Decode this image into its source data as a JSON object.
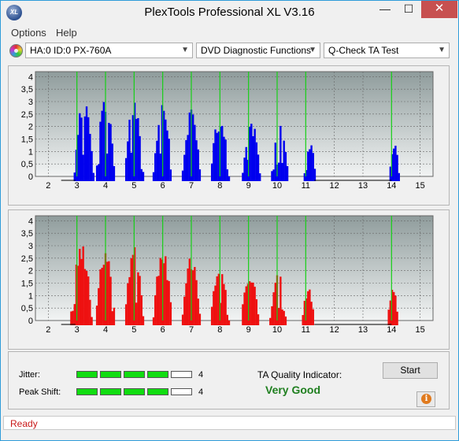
{
  "window": {
    "title": "PlexTools Professional XL V3.16",
    "app_icon_text": "XL",
    "minimize_glyph": "—",
    "maximize_glyph": "☐",
    "close_glyph": "✕"
  },
  "menu": {
    "items": [
      {
        "label": "Options"
      },
      {
        "label": "Help"
      }
    ]
  },
  "toolbar": {
    "drive": "HA:0 ID:0  PX-760A",
    "function": "DVD Diagnostic Functions",
    "test": "Q-Check TA Test",
    "icon": "disc-icon"
  },
  "chart_data": [
    {
      "type": "bar",
      "color": "#0000ee",
      "x_ticks": [
        2,
        3,
        4,
        5,
        6,
        7,
        8,
        9,
        10,
        11,
        12,
        13,
        14,
        15
      ],
      "y_ticks": [
        "4",
        "3,5",
        "3",
        "2,5",
        "2",
        "1,5",
        "1",
        "0,5",
        "0"
      ],
      "xlim": [
        1.55,
        15.45
      ],
      "ylim": [
        0,
        4.2
      ],
      "grid": true,
      "markers": [
        3,
        4,
        5,
        6,
        7,
        8,
        9,
        10,
        11,
        14
      ],
      "peaks": [
        {
          "center": 3.25,
          "half_width": 0.34,
          "height": 3.2
        },
        {
          "center": 4.0,
          "half_width": 0.33,
          "height": 3.15
        },
        {
          "center": 5.0,
          "half_width": 0.33,
          "height": 3.0
        },
        {
          "center": 6.0,
          "half_width": 0.33,
          "height": 2.9
        },
        {
          "center": 7.0,
          "half_width": 0.32,
          "height": 2.75
        },
        {
          "center": 8.0,
          "half_width": 0.32,
          "height": 2.55
        },
        {
          "center": 9.1,
          "half_width": 0.31,
          "height": 2.3
        },
        {
          "center": 10.1,
          "half_width": 0.3,
          "height": 2.05
        },
        {
          "center": 11.15,
          "half_width": 0.2,
          "height": 1.35
        },
        {
          "center": 14.1,
          "half_width": 0.17,
          "height": 1.45
        }
      ]
    },
    {
      "type": "bar",
      "color": "#ee1111",
      "x_ticks": [
        2,
        3,
        4,
        5,
        6,
        7,
        8,
        9,
        10,
        11,
        12,
        13,
        14,
        15
      ],
      "y_ticks": [
        "4",
        "3,5",
        "3",
        "2,5",
        "2",
        "1,5",
        "1",
        "0,5",
        "0"
      ],
      "xlim": [
        1.55,
        15.45
      ],
      "ylim": [
        0,
        4.2
      ],
      "grid": true,
      "markers": [
        3,
        4,
        5,
        6,
        7,
        8,
        9,
        10,
        11,
        14
      ],
      "peaks": [
        {
          "center": 3.15,
          "half_width": 0.38,
          "height": 3.15
        },
        {
          "center": 4.0,
          "half_width": 0.34,
          "height": 3.0
        },
        {
          "center": 5.0,
          "half_width": 0.33,
          "height": 2.95
        },
        {
          "center": 6.0,
          "half_width": 0.33,
          "height": 2.85
        },
        {
          "center": 7.0,
          "half_width": 0.32,
          "height": 2.7
        },
        {
          "center": 8.0,
          "half_width": 0.32,
          "height": 2.45
        },
        {
          "center": 9.05,
          "half_width": 0.31,
          "height": 2.2
        },
        {
          "center": 10.05,
          "half_width": 0.3,
          "height": 1.95
        },
        {
          "center": 11.1,
          "half_width": 0.22,
          "height": 1.35
        },
        {
          "center": 14.05,
          "half_width": 0.18,
          "height": 1.5
        }
      ]
    }
  ],
  "metrics": {
    "jitter": {
      "label": "Jitter:",
      "value": "4",
      "level": 4,
      "max": 5
    },
    "peak_shift": {
      "label": "Peak Shift:",
      "value": "4",
      "level": 4,
      "max": 5
    }
  },
  "quality": {
    "label": "TA Quality Indicator:",
    "value": "Very Good"
  },
  "buttons": {
    "start": "Start",
    "info_glyph": "i"
  },
  "status": {
    "text": "Ready"
  }
}
